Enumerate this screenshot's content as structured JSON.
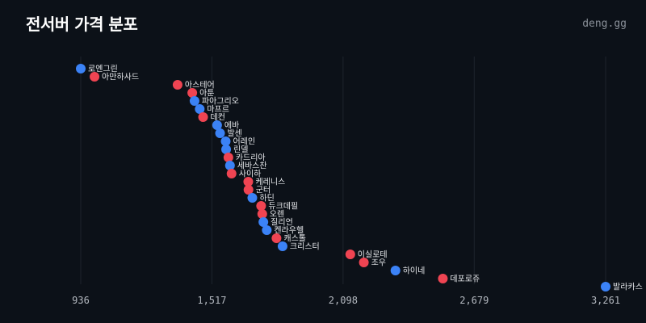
{
  "header": {
    "title": "전서버 가격 분포",
    "brand": "deng.gg"
  },
  "colors": {
    "background": "#0c1118",
    "blue": "#3b82f6",
    "red": "#ef4452",
    "grid": "#1e242d"
  },
  "chart_data": {
    "type": "scatter",
    "title": "전서버 가격 분포",
    "xlabel": "",
    "ylabel": "",
    "xlim": [
      936,
      3261
    ],
    "x_ticks": [
      "936",
      "1,517",
      "2,098",
      "2,679",
      "3,261"
    ],
    "x_tick_values": [
      936,
      1517,
      2098,
      2679,
      3261
    ],
    "grid": true,
    "legend": "none",
    "points": [
      {
        "label": "로엔그린",
        "x": 936,
        "color": "blue"
      },
      {
        "label": "아만하사드",
        "x": 997,
        "color": "red"
      },
      {
        "label": "아스테어",
        "x": 1365,
        "color": "red"
      },
      {
        "label": "아툰",
        "x": 1430,
        "color": "red"
      },
      {
        "label": "파아그리오",
        "x": 1440,
        "color": "blue"
      },
      {
        "label": "마프르",
        "x": 1463,
        "color": "blue"
      },
      {
        "label": "데컨",
        "x": 1478,
        "color": "red"
      },
      {
        "label": "에바",
        "x": 1540,
        "color": "blue"
      },
      {
        "label": "발센",
        "x": 1553,
        "color": "blue"
      },
      {
        "label": "어레인",
        "x": 1578,
        "color": "blue"
      },
      {
        "label": "린델",
        "x": 1580,
        "color": "blue"
      },
      {
        "label": "카드리아",
        "x": 1590,
        "color": "red"
      },
      {
        "label": "세바스찬",
        "x": 1597,
        "color": "blue"
      },
      {
        "label": "사이하",
        "x": 1604,
        "color": "red"
      },
      {
        "label": "케레니스",
        "x": 1678,
        "color": "red"
      },
      {
        "label": "군터",
        "x": 1679,
        "color": "red"
      },
      {
        "label": "하딘",
        "x": 1696,
        "color": "blue"
      },
      {
        "label": "듀크데필",
        "x": 1735,
        "color": "red"
      },
      {
        "label": "오렌",
        "x": 1740,
        "color": "red"
      },
      {
        "label": "질리언",
        "x": 1745,
        "color": "blue"
      },
      {
        "label": "켄라우헬",
        "x": 1760,
        "color": "blue"
      },
      {
        "label": "캐스톨",
        "x": 1803,
        "color": "red"
      },
      {
        "label": "크리스터",
        "x": 1830,
        "color": "blue"
      },
      {
        "label": "이실로테",
        "x": 2130,
        "color": "red"
      },
      {
        "label": "조우",
        "x": 2190,
        "color": "red"
      },
      {
        "label": "하이네",
        "x": 2330,
        "color": "blue"
      },
      {
        "label": "데포로쥬",
        "x": 2540,
        "color": "red"
      },
      {
        "label": "발라카스",
        "x": 3261,
        "color": "blue"
      }
    ]
  }
}
